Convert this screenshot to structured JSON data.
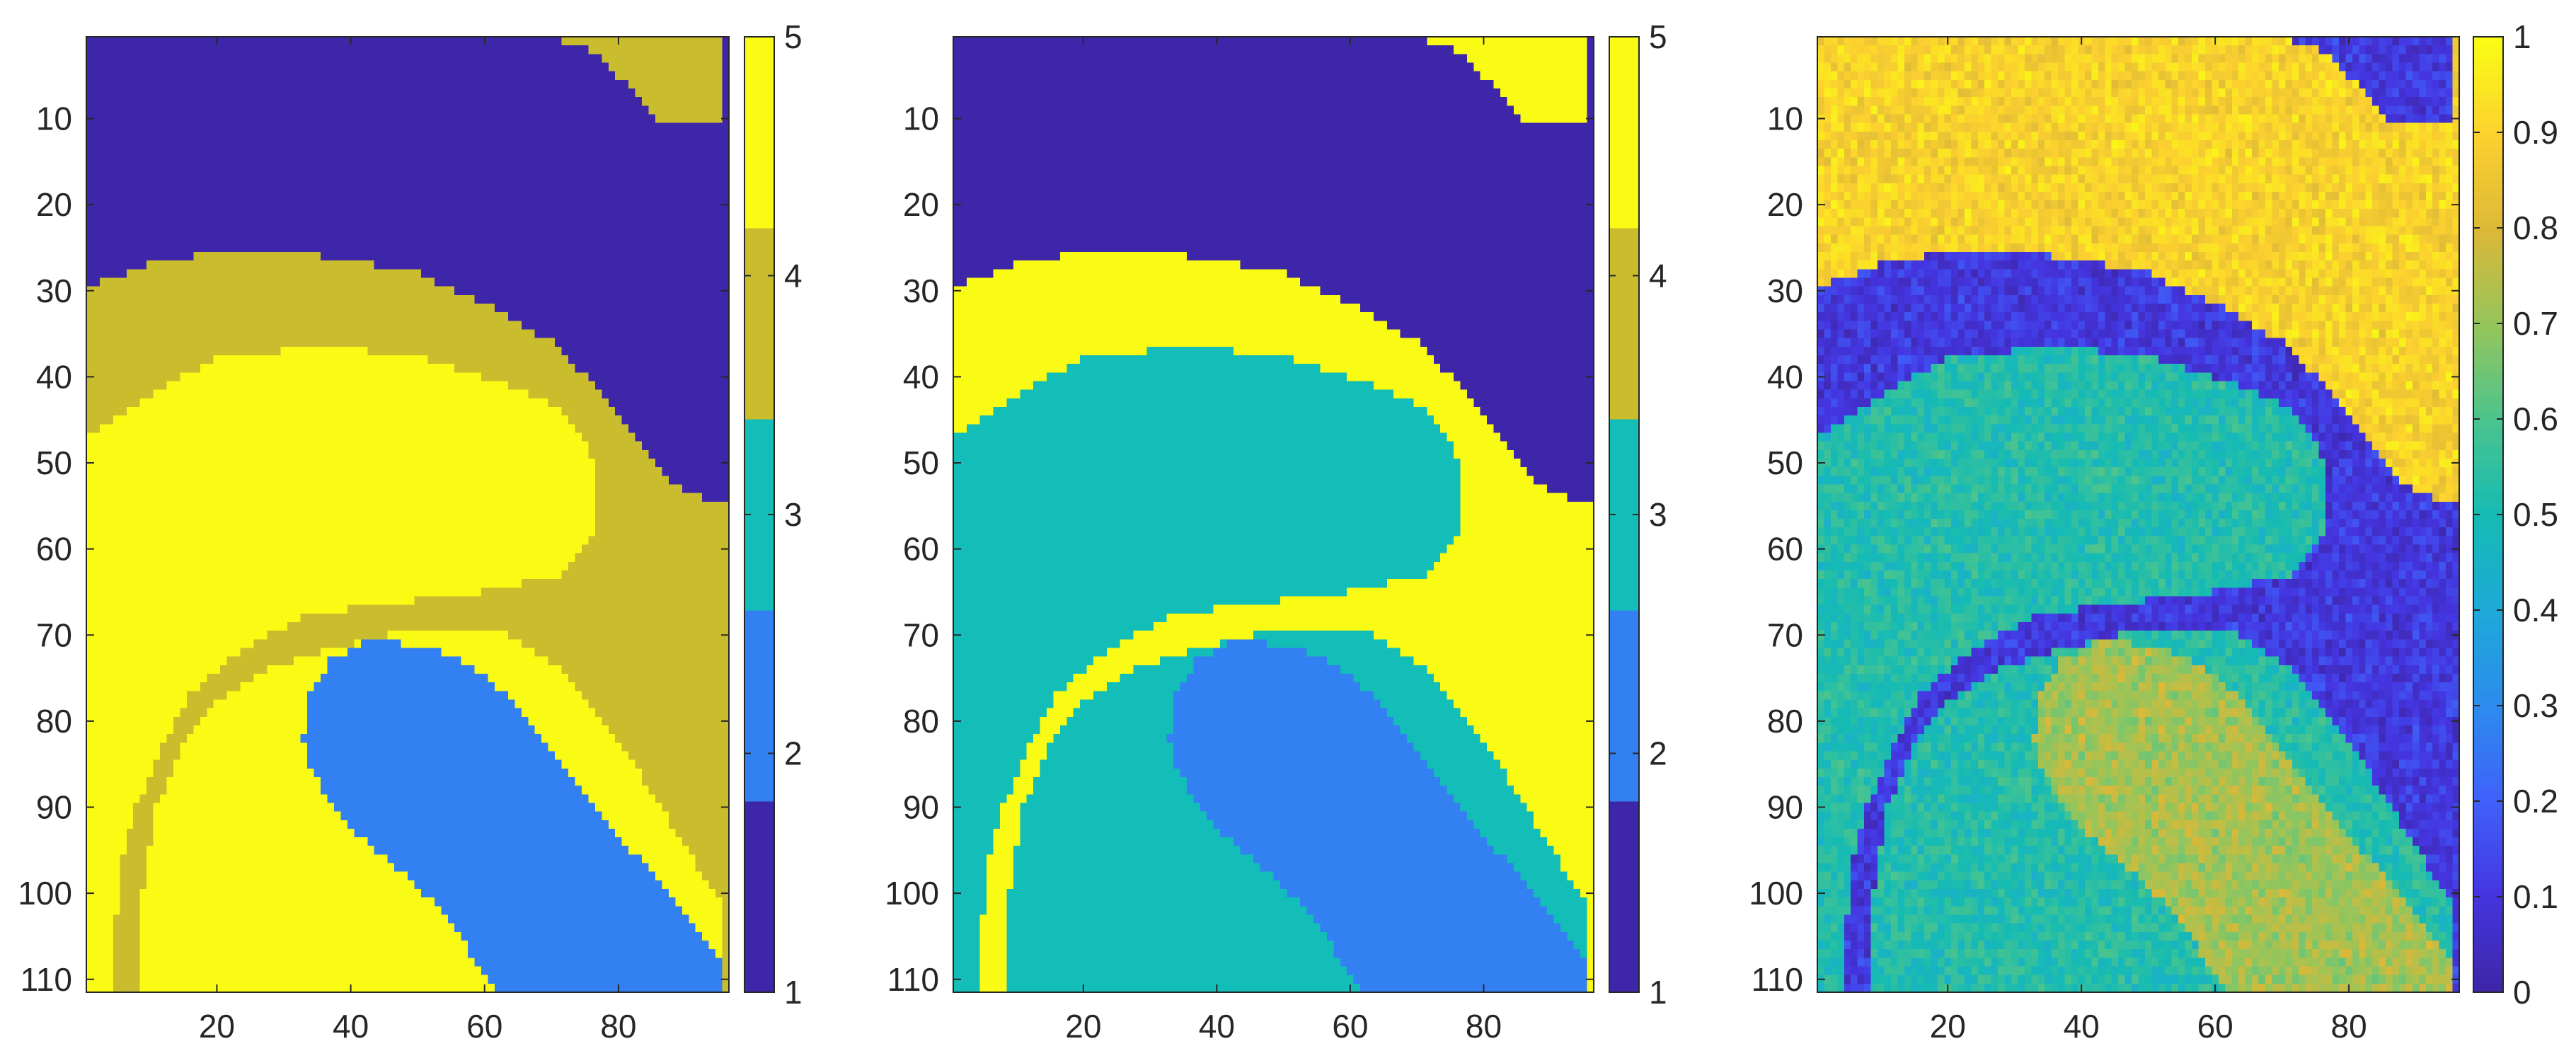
{
  "chart_data": [
    {
      "type": "heatmap",
      "id": "panel-1",
      "title": "",
      "xlabel": "",
      "ylabel": "",
      "grid": false,
      "image_size": {
        "cols": 96,
        "rows": 111
      },
      "xlim": [
        0.5,
        96.5
      ],
      "ylim": [
        0.5,
        111.5
      ],
      "y_reversed": true,
      "xticks": [
        20,
        40,
        60,
        80
      ],
      "yticks": [
        10,
        20,
        30,
        40,
        50,
        60,
        70,
        80,
        90,
        100,
        110
      ],
      "colormap": "discrete",
      "noise": 0,
      "regions": {
        "top": {
          "label": "class 1",
          "value": 1
        },
        "corner": {
          "label": "class 4",
          "value": 4
        },
        "band_outer": {
          "label": "class 4",
          "value": 4
        },
        "blob": {
          "label": "class 5",
          "value": 5
        },
        "band_lower": {
          "label": "class 5",
          "value": 5
        },
        "lower_left": {
          "label": "class 4",
          "value": 4
        },
        "tongue": {
          "label": "class 2",
          "value": 2
        }
      },
      "colorbar": {
        "type": "discrete",
        "ticks": [
          1,
          2,
          3,
          4,
          5
        ],
        "range": [
          1,
          5
        ],
        "levels": [
          {
            "value": 1,
            "color": "#3e26a8"
          },
          {
            "value": 2,
            "color": "#3380f2"
          },
          {
            "value": 3,
            "color": "#13beb8"
          },
          {
            "value": 4,
            "color": "#cabd2d"
          },
          {
            "value": 5,
            "color": "#f9fb14"
          }
        ]
      }
    },
    {
      "type": "heatmap",
      "id": "panel-2",
      "title": "",
      "xlabel": "",
      "ylabel": "",
      "grid": false,
      "image_size": {
        "cols": 96,
        "rows": 111
      },
      "xlim": [
        0.5,
        96.5
      ],
      "ylim": [
        0.5,
        111.5
      ],
      "y_reversed": true,
      "xticks": [
        20,
        40,
        60,
        80
      ],
      "yticks": [
        10,
        20,
        30,
        40,
        50,
        60,
        70,
        80,
        90,
        100,
        110
      ],
      "colormap": "discrete",
      "noise": 0,
      "regions": {
        "top": {
          "label": "class 1",
          "value": 1
        },
        "corner": {
          "label": "class 5",
          "value": 5
        },
        "band_outer": {
          "label": "class 5",
          "value": 5
        },
        "blob": {
          "label": "class 3",
          "value": 3
        },
        "band_lower": {
          "label": "class 3",
          "value": 3
        },
        "lower_left": {
          "label": "class 5",
          "value": 5
        },
        "tongue": {
          "label": "class 2",
          "value": 2
        }
      },
      "colorbar": {
        "type": "discrete",
        "ticks": [
          1,
          2,
          3,
          4,
          5
        ],
        "range": [
          1,
          5
        ],
        "levels": [
          {
            "value": 1,
            "color": "#3e26a8"
          },
          {
            "value": 2,
            "color": "#3380f2"
          },
          {
            "value": 3,
            "color": "#13beb8"
          },
          {
            "value": 4,
            "color": "#cabd2d"
          },
          {
            "value": 5,
            "color": "#f9fb14"
          }
        ]
      }
    },
    {
      "type": "heatmap",
      "id": "panel-3",
      "title": "",
      "xlabel": "",
      "ylabel": "",
      "grid": false,
      "image_size": {
        "cols": 96,
        "rows": 111
      },
      "xlim": [
        0.5,
        96.5
      ],
      "ylim": [
        0.5,
        111.5
      ],
      "y_reversed": true,
      "xticks": [
        20,
        40,
        60,
        80
      ],
      "yticks": [
        10,
        20,
        30,
        40,
        50,
        60,
        70,
        80,
        90,
        100,
        110
      ],
      "colormap": "parula",
      "noise": 0.06,
      "regions": {
        "top": {
          "label": "upper region",
          "value": 0.9
        },
        "corner": {
          "label": "top-right corner",
          "value": 0.1
        },
        "band_outer": {
          "label": "outer band",
          "value": 0.1
        },
        "blob": {
          "label": "middle blob",
          "value": 0.52
        },
        "band_lower": {
          "label": "lower band",
          "value": 0.52
        },
        "lower_left": {
          "label": "lower-left region",
          "value": 0.1
        },
        "tongue": {
          "label": "tongue",
          "value": 0.72
        }
      },
      "colorbar": {
        "type": "continuous",
        "ticks": [
          0,
          0.1,
          0.2,
          0.3,
          0.4,
          0.5,
          0.6,
          0.7,
          0.8,
          0.9,
          1
        ],
        "range": [
          0,
          1
        ],
        "colormap": "parula"
      }
    }
  ]
}
